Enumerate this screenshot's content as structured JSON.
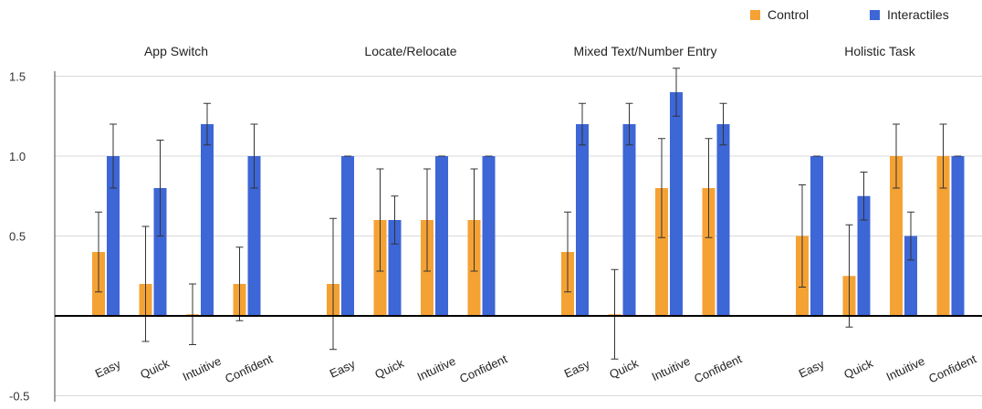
{
  "chart_data": {
    "type": "bar",
    "panels": [
      "App Switch",
      "Locate/Relocate",
      "Mixed Text/Number Entry",
      "Holistic Task"
    ],
    "categories": [
      "Easy",
      "Quick",
      "Intuitive",
      "Confident"
    ],
    "series": [
      {
        "name": "Control",
        "color": "#f5a235",
        "values": [
          [
            0.4,
            0.2,
            0.01,
            0.2
          ],
          [
            0.2,
            0.6,
            0.6,
            0.6
          ],
          [
            0.4,
            0.01,
            0.8,
            0.8
          ],
          [
            0.5,
            0.25,
            1.0,
            1.0
          ]
        ],
        "errors": [
          [
            [
              0.15,
              0.65
            ],
            [
              -0.16,
              0.56
            ],
            [
              -0.18,
              0.2
            ],
            [
              -0.03,
              0.43
            ]
          ],
          [
            [
              -0.21,
              0.61
            ],
            [
              0.28,
              0.92
            ],
            [
              0.28,
              0.92
            ],
            [
              0.28,
              0.92
            ]
          ],
          [
            [
              0.15,
              0.65
            ],
            [
              -0.27,
              0.29
            ],
            [
              0.49,
              1.11
            ],
            [
              0.49,
              1.11
            ]
          ],
          [
            [
              0.18,
              0.82
            ],
            [
              -0.07,
              0.57
            ],
            [
              0.8,
              1.2
            ],
            [
              0.8,
              1.2
            ]
          ]
        ]
      },
      {
        "name": "Interactiles",
        "color": "#3d66d6",
        "values": [
          [
            1.0,
            0.8,
            1.2,
            1.0
          ],
          [
            1.0,
            0.6,
            1.0,
            1.0
          ],
          [
            1.2,
            1.2,
            1.4,
            1.2
          ],
          [
            1.0,
            0.75,
            0.5,
            1.0
          ]
        ],
        "errors": [
          [
            [
              0.8,
              1.2
            ],
            [
              0.5,
              1.1
            ],
            [
              1.07,
              1.33
            ],
            [
              0.8,
              1.2
            ]
          ],
          [
            [
              1.0,
              1.0
            ],
            [
              0.45,
              0.75
            ],
            [
              1.0,
              1.0
            ],
            [
              1.0,
              1.0
            ]
          ],
          [
            [
              1.07,
              1.33
            ],
            [
              1.07,
              1.33
            ],
            [
              1.25,
              1.55
            ],
            [
              1.07,
              1.33
            ]
          ],
          [
            [
              1.0,
              1.0
            ],
            [
              0.6,
              0.9
            ],
            [
              0.35,
              0.65
            ],
            [
              1.0,
              1.0
            ]
          ]
        ]
      }
    ],
    "yticks": [
      "-0.5",
      "0.5",
      "1.0",
      "1.5"
    ],
    "ylim": [
      -0.55,
      1.6
    ],
    "grid": true,
    "legend": "top-right"
  }
}
